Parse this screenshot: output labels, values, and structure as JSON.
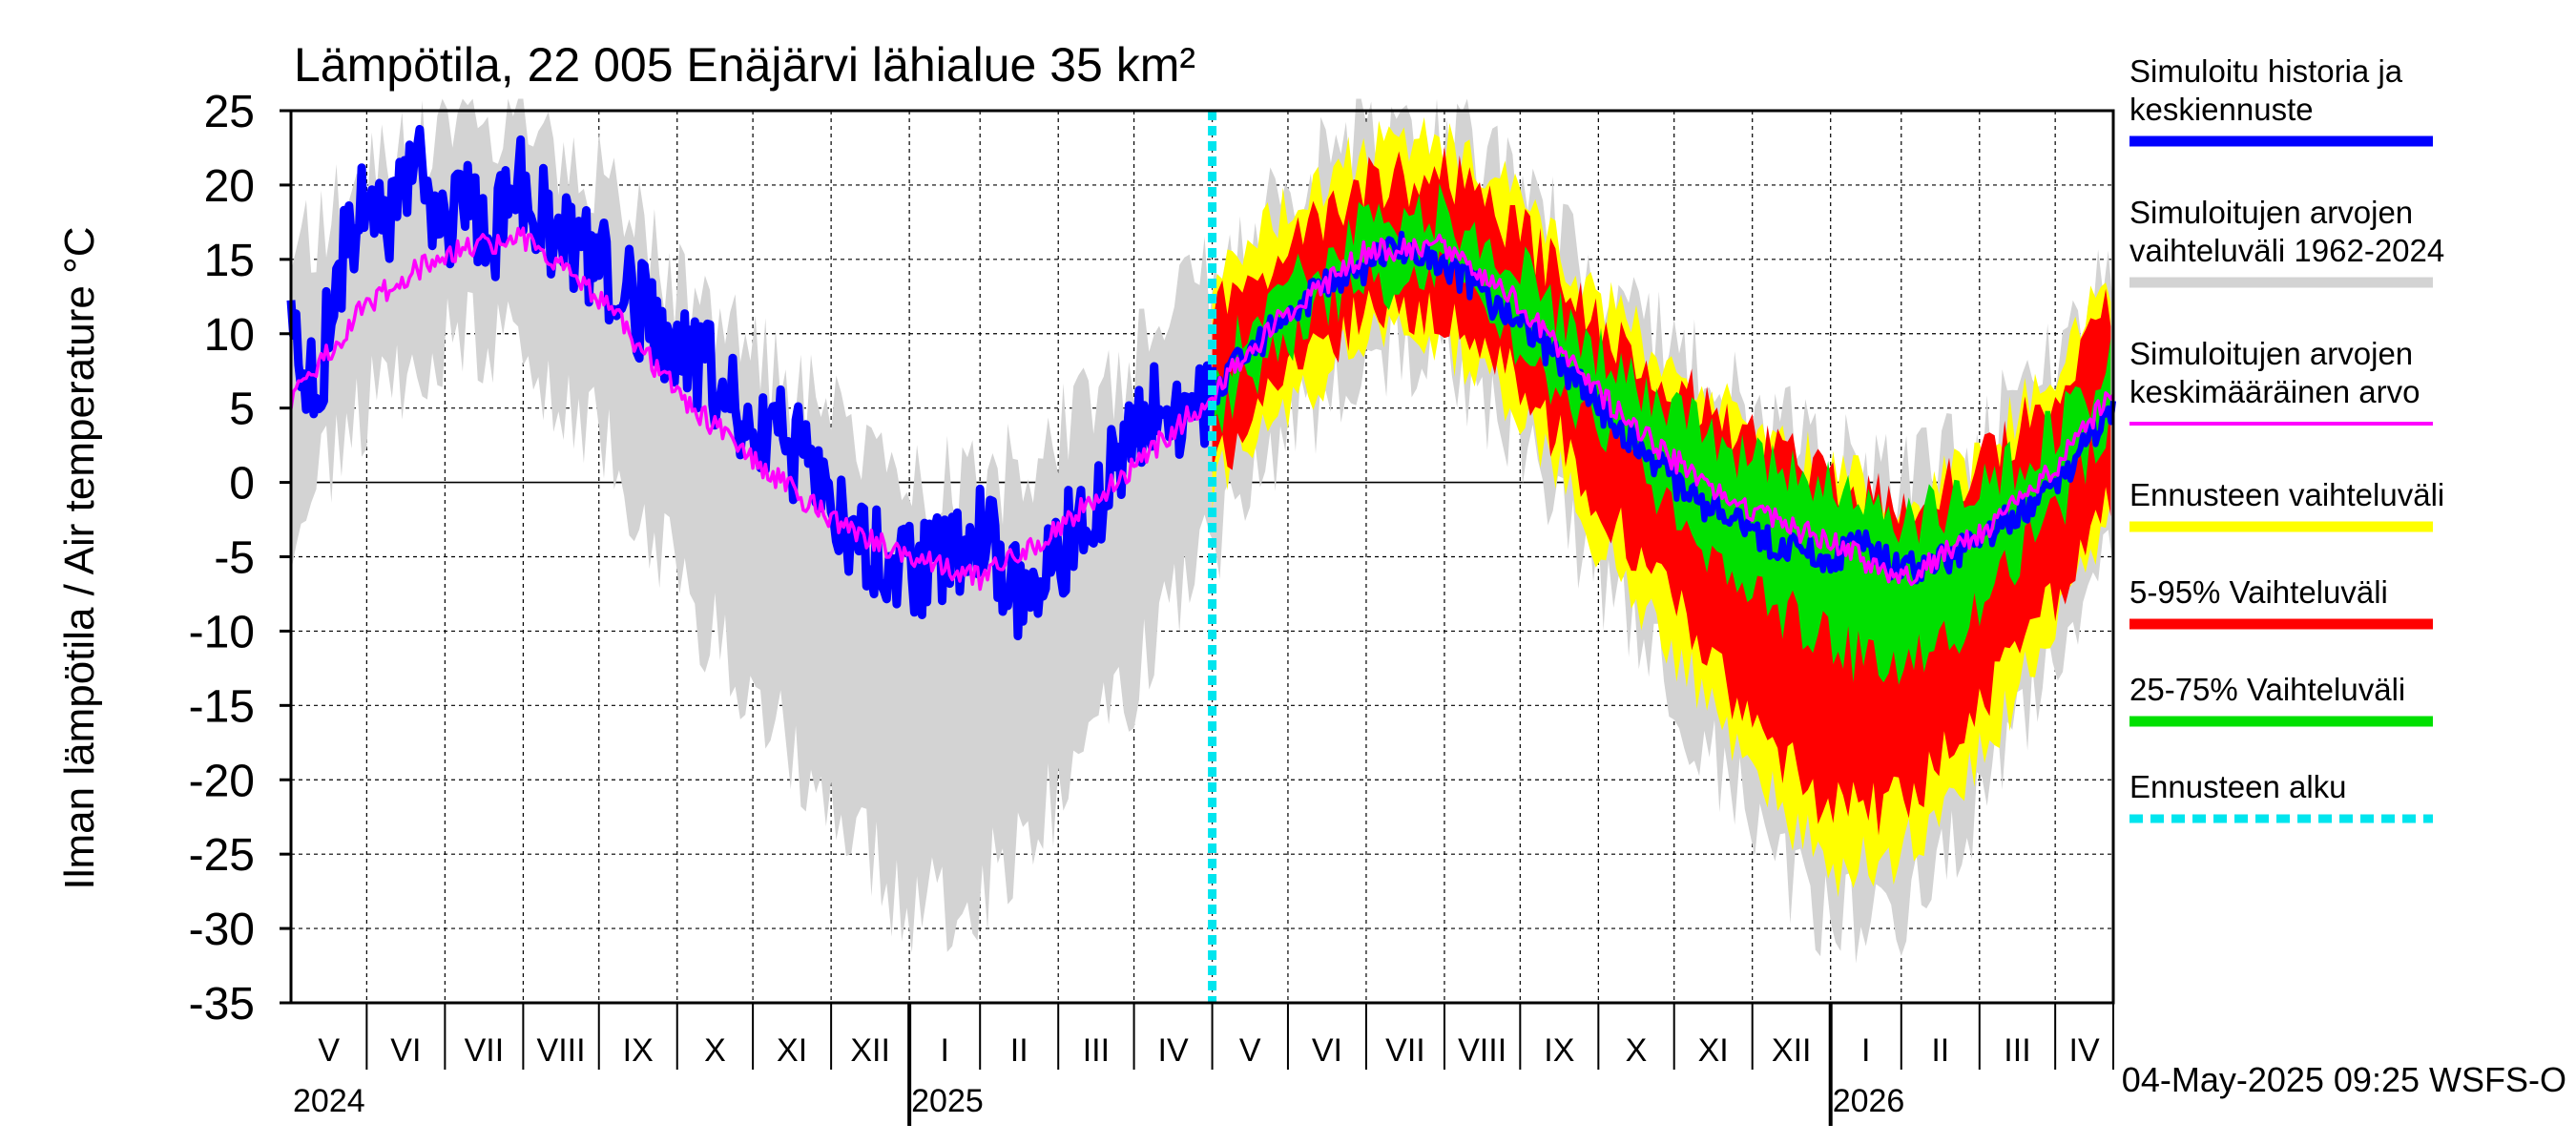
{
  "chart_data": {
    "type": "area",
    "title": "Lämpötila, 22 005 Enäjärvi lähialue 35 km²",
    "ylabel": "Ilman lämpötila / Air temperature   °C",
    "ylim": [
      -35,
      25
    ],
    "yticks": [
      "25",
      "20",
      "15",
      "10",
      "5",
      "0",
      "-5",
      "-10",
      "-15",
      "-20",
      "-25",
      "-30",
      "-35"
    ],
    "xlim_days": [
      0,
      722
    ],
    "months": [
      {
        "label": "V",
        "start": 0,
        "end": 30
      },
      {
        "label": "VI",
        "start": 30,
        "end": 61
      },
      {
        "label": "VII",
        "start": 61,
        "end": 92
      },
      {
        "label": "VIII",
        "start": 92,
        "end": 122
      },
      {
        "label": "IX",
        "start": 122,
        "end": 153
      },
      {
        "label": "X",
        "start": 153,
        "end": 183
      },
      {
        "label": "XI",
        "start": 183,
        "end": 214
      },
      {
        "label": "XII",
        "start": 214,
        "end": 245
      },
      {
        "label": "I",
        "start": 245,
        "end": 273
      },
      {
        "label": "II",
        "start": 273,
        "end": 304
      },
      {
        "label": "III",
        "start": 304,
        "end": 334
      },
      {
        "label": "IV",
        "start": 334,
        "end": 365
      },
      {
        "label": "V",
        "start": 365,
        "end": 395
      },
      {
        "label": "VI",
        "start": 395,
        "end": 426
      },
      {
        "label": "VII",
        "start": 426,
        "end": 457
      },
      {
        "label": "VIII",
        "start": 457,
        "end": 487
      },
      {
        "label": "IX",
        "start": 487,
        "end": 518
      },
      {
        "label": "X",
        "start": 518,
        "end": 548
      },
      {
        "label": "XI",
        "start": 548,
        "end": 579
      },
      {
        "label": "XII",
        "start": 579,
        "end": 610
      },
      {
        "label": "I",
        "start": 610,
        "end": 638
      },
      {
        "label": "II",
        "start": 638,
        "end": 669
      },
      {
        "label": "III",
        "start": 669,
        "end": 699
      },
      {
        "label": "IV",
        "start": 699,
        "end": 722
      }
    ],
    "years": [
      {
        "label": "2024",
        "day": 0
      },
      {
        "label": "2025",
        "day": 245
      },
      {
        "label": "2026",
        "day": 610
      }
    ],
    "year_boundaries": [
      245,
      610
    ],
    "forecast_start_day": 365,
    "seasonal_mean": {
      "description": "Simuloitujen arvojen keskimääräinen arvo, approx °C by day",
      "points": [
        [
          0,
          5.5
        ],
        [
          30,
          12
        ],
        [
          61,
          15.5
        ],
        [
          92,
          16.5
        ],
        [
          122,
          12.5
        ],
        [
          153,
          6
        ],
        [
          183,
          1.5
        ],
        [
          214,
          -2.5
        ],
        [
          245,
          -5
        ],
        [
          273,
          -6.5
        ],
        [
          304,
          -3
        ],
        [
          334,
          1
        ],
        [
          365,
          6
        ],
        [
          395,
          11.5
        ],
        [
          426,
          15.5
        ],
        [
          457,
          16
        ],
        [
          487,
          12
        ],
        [
          518,
          6
        ],
        [
          548,
          1.5
        ],
        [
          579,
          -2
        ],
        [
          610,
          -4
        ],
        [
          638,
          -6.5
        ],
        [
          669,
          -3.5
        ],
        [
          699,
          1
        ],
        [
          722,
          6
        ]
      ]
    },
    "history_series": {
      "name": "Simuloitu historia",
      "points": [
        [
          0,
          10
        ],
        [
          10,
          6
        ],
        [
          20,
          15
        ],
        [
          30,
          19
        ],
        [
          40,
          18
        ],
        [
          50,
          21
        ],
        [
          61,
          17
        ],
        [
          70,
          19
        ],
        [
          80,
          17
        ],
        [
          92,
          20
        ],
        [
          105,
          17
        ],
        [
          122,
          15
        ],
        [
          135,
          12
        ],
        [
          153,
          9
        ],
        [
          165,
          8
        ],
        [
          183,
          4
        ],
        [
          195,
          3
        ],
        [
          214,
          -1
        ],
        [
          225,
          -4
        ],
        [
          245,
          -6
        ],
        [
          255,
          -5
        ],
        [
          273,
          -3
        ],
        [
          285,
          -7
        ],
        [
          294,
          -9
        ],
        [
          304,
          -5
        ],
        [
          315,
          -2
        ],
        [
          334,
          3
        ],
        [
          345,
          6
        ],
        [
          355,
          5
        ],
        [
          365,
          6
        ]
      ]
    },
    "median_forecast": {
      "name": "Keskiennuste",
      "points": [
        [
          365,
          6
        ],
        [
          380,
          9
        ],
        [
          395,
          11
        ],
        [
          410,
          13.5
        ],
        [
          426,
          14.5
        ],
        [
          440,
          16
        ],
        [
          457,
          14.5
        ],
        [
          470,
          13
        ],
        [
          487,
          10.5
        ],
        [
          500,
          8.5
        ],
        [
          518,
          5
        ],
        [
          535,
          2.5
        ],
        [
          548,
          0
        ],
        [
          565,
          -2
        ],
        [
          579,
          -3.5
        ],
        [
          595,
          -4.5
        ],
        [
          610,
          -5
        ],
        [
          625,
          -4
        ],
        [
          638,
          -6
        ],
        [
          650,
          -5.5
        ],
        [
          669,
          -4
        ],
        [
          685,
          -2
        ],
        [
          699,
          0
        ],
        [
          712,
          2.5
        ],
        [
          722,
          5
        ]
      ]
    },
    "series": [
      {
        "name": "Simuloitujen arvojen vaihteluväli 1962-2024",
        "color": "#d3d3d3",
        "offsets": [
          [
            0,
            -8,
            9
          ],
          [
            61,
            -6,
            8
          ],
          [
            122,
            -9,
            8
          ],
          [
            183,
            -16,
            7
          ],
          [
            245,
            -24,
            6
          ],
          [
            304,
            -18,
            6
          ],
          [
            365,
            -10,
            8
          ],
          [
            426,
            -7,
            8
          ],
          [
            487,
            -9,
            8
          ],
          [
            548,
            -16,
            7
          ],
          [
            610,
            -26,
            6
          ],
          [
            669,
            -18,
            6
          ],
          [
            722,
            -9,
            9
          ]
        ]
      },
      {
        "name": "Ennusteen vaihteluväli",
        "color": "#ffff00",
        "offsets": [
          [
            365,
            -6,
            7
          ],
          [
            426,
            -6,
            7
          ],
          [
            487,
            -7,
            7
          ],
          [
            548,
            -13,
            6
          ],
          [
            610,
            -22,
            5
          ],
          [
            669,
            -15,
            5
          ],
          [
            722,
            -7,
            8
          ]
        ]
      },
      {
        "name": "5-95% Vaihteluväli",
        "color": "#ff0000",
        "offsets": [
          [
            365,
            -5,
            5
          ],
          [
            426,
            -4,
            4.5
          ],
          [
            487,
            -5,
            5
          ],
          [
            548,
            -10,
            5
          ],
          [
            610,
            -18,
            4.5
          ],
          [
            669,
            -12,
            4.5
          ],
          [
            722,
            -6,
            6
          ]
        ]
      },
      {
        "name": "25-75% Vaihteluväli",
        "color": "#00e000",
        "offsets": [
          [
            365,
            -1.5,
            1.5
          ],
          [
            426,
            -2,
            2
          ],
          [
            487,
            -2.5,
            2.5
          ],
          [
            548,
            -3.5,
            3
          ],
          [
            610,
            -7,
            4
          ],
          [
            669,
            -5,
            3
          ],
          [
            722,
            -2,
            2
          ]
        ]
      }
    ],
    "legend": [
      {
        "label_lines": [
          "Simuloitu historia ja",
          "keskiennuste"
        ],
        "color": "#0000ff",
        "style": "solid"
      },
      {
        "label_lines": [
          "Simuloitujen arvojen",
          "vaihteluväli 1962-2024"
        ],
        "color": "#d3d3d3",
        "style": "solid"
      },
      {
        "label_lines": [
          "Simuloitujen arvojen",
          "keskimääräinen arvo"
        ],
        "color": "#ff00ff",
        "style": "thin"
      },
      {
        "label_lines": [
          "Ennusteen vaihteluväli"
        ],
        "color": "#ffff00",
        "style": "solid"
      },
      {
        "label_lines": [
          "5-95% Vaihteluväli"
        ],
        "color": "#ff0000",
        "style": "solid"
      },
      {
        "label_lines": [
          "25-75% Vaihteluväli"
        ],
        "color": "#00e000",
        "style": "solid"
      },
      {
        "label_lines": [
          "Ennusteen alku"
        ],
        "color": "#00e5ee",
        "style": "dashed"
      }
    ],
    "footer": "04-May-2025 09:25 WSFS-O"
  }
}
